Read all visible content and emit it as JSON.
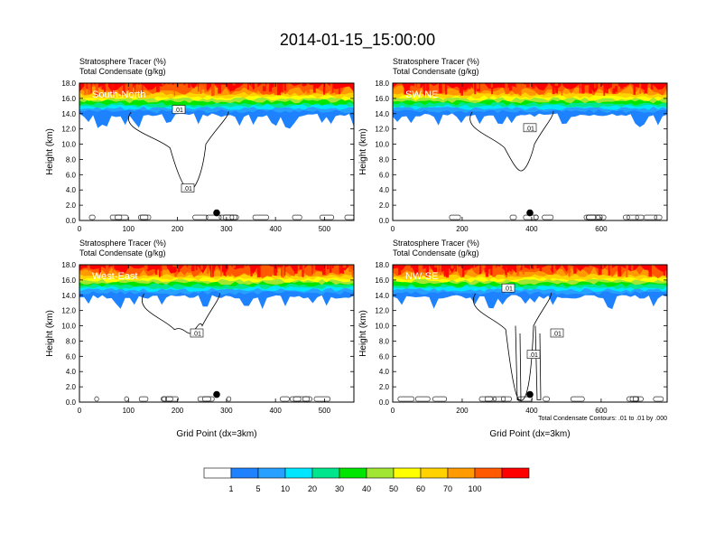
{
  "title": "2014-01-15_15:00:00",
  "colorbar": {
    "colors": [
      "#ffffff",
      "#1e82ff",
      "#28a0ff",
      "#00e6ff",
      "#00e68c",
      "#00e600",
      "#a0e632",
      "#ffff00",
      "#ffd200",
      "#ff9b00",
      "#ff5a00",
      "#ff0000"
    ],
    "labels": [
      "1",
      "5",
      "10",
      "20",
      "30",
      "40",
      "50",
      "60",
      "70",
      "100"
    ]
  },
  "chart_data": [
    {
      "type": "contour",
      "label": "South-North",
      "header_line1": "Stratosphere Tracer   (%)",
      "header_line2": "Total Condensate   (g/kg)",
      "ylabel": "Height (km)",
      "xlabel": "",
      "xlim": [
        0,
        560
      ],
      "xticks": [
        "0",
        "100",
        "200",
        "300",
        "400",
        "500"
      ],
      "xtick_values": [
        0,
        100,
        200,
        300,
        400,
        500
      ],
      "ylim": [
        0,
        18
      ],
      "yticks": [
        "0.0",
        "2.0",
        "4.0",
        "6.0",
        "8.0",
        "10.0",
        "12.0",
        "14.0",
        "16.0",
        "18.0"
      ],
      "contour_label": ".01",
      "marker_x": 280
    },
    {
      "type": "contour",
      "label": "SW-NE",
      "header_line1": "Stratosphere Tracer   (%)",
      "header_line2": "Total Condensate   (g/kg)",
      "ylabel": "Height (km)",
      "xlabel": "",
      "xlim": [
        0,
        790
      ],
      "xticks": [
        "0",
        "200",
        "400",
        "600"
      ],
      "xtick_values": [
        0,
        200,
        400,
        600
      ],
      "ylim": [
        0,
        18
      ],
      "yticks": [
        "0.0",
        "2.0",
        "4.0",
        "6.0",
        "8.0",
        "10.0",
        "12.0",
        "14.0",
        "16.0",
        "18.0"
      ],
      "contour_label": ".01",
      "marker_x": 395
    },
    {
      "type": "contour",
      "label": "West-East",
      "header_line1": "Stratosphere Tracer   (%)",
      "header_line2": "Total Condensate   (g/kg)",
      "ylabel": "Height (km)",
      "xlabel": "Grid Point (dx=3km)",
      "xlim": [
        0,
        560
      ],
      "xticks": [
        "0",
        "100",
        "200",
        "300",
        "400",
        "500"
      ],
      "xtick_values": [
        0,
        100,
        200,
        300,
        400,
        500
      ],
      "ylim": [
        0,
        18
      ],
      "yticks": [
        "0.0",
        "2.0",
        "4.0",
        "6.0",
        "8.0",
        "10.0",
        "12.0",
        "14.0",
        "16.0",
        "18.0"
      ],
      "contour_label": ".01",
      "marker_x": 280
    },
    {
      "type": "contour",
      "label": "NW-SE",
      "header_line1": "Stratosphere Tracer   (%)",
      "header_line2": "Total Condensate   (g/kg)",
      "ylabel": "Height (km)",
      "xlabel": "Grid Point (dx=3km)",
      "xlim": [
        0,
        790
      ],
      "xticks": [
        "0",
        "200",
        "400",
        "600"
      ],
      "xtick_values": [
        0,
        200,
        400,
        600
      ],
      "ylim": [
        0,
        18
      ],
      "yticks": [
        "0.0",
        "2.0",
        "4.0",
        "6.0",
        "8.0",
        "10.0",
        "12.0",
        "14.0",
        "16.0",
        "18.0"
      ],
      "contour_label": ".01",
      "marker_x": 395,
      "footnote": "Total Condensate Contours: .01 to .01 by .000"
    }
  ]
}
